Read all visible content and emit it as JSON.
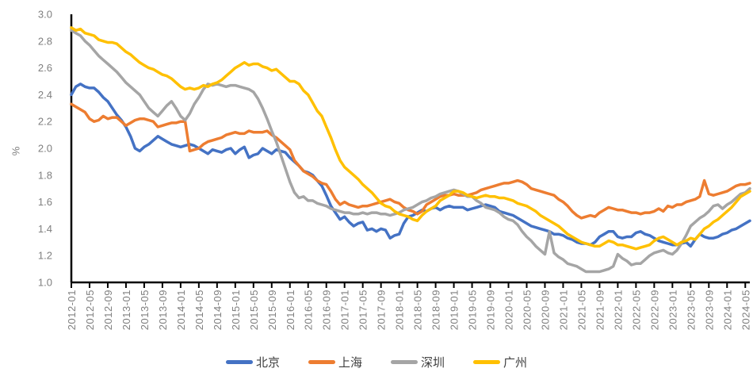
{
  "chart_data": {
    "type": "line",
    "title": "",
    "ylabel": "%",
    "ylim": [
      1.0,
      3.0
    ],
    "ytick_step": 0.2,
    "x_tick_every": 4,
    "grid": false,
    "legend_position": "bottom",
    "axis_color": "#000000",
    "tick_label_color": "#7f7f7f",
    "legend_text_color": "#404040",
    "x": [
      "2012-01",
      "2012-02",
      "2012-03",
      "2012-04",
      "2012-05",
      "2012-06",
      "2012-07",
      "2012-08",
      "2012-09",
      "2012-10",
      "2012-11",
      "2012-12",
      "2013-01",
      "2013-02",
      "2013-03",
      "2013-04",
      "2013-05",
      "2013-06",
      "2013-07",
      "2013-08",
      "2013-09",
      "2013-10",
      "2013-11",
      "2013-12",
      "2014-01",
      "2014-02",
      "2014-03",
      "2014-04",
      "2014-05",
      "2014-06",
      "2014-07",
      "2014-08",
      "2014-09",
      "2014-10",
      "2014-11",
      "2014-12",
      "2015-01",
      "2015-02",
      "2015-03",
      "2015-04",
      "2015-05",
      "2015-06",
      "2015-07",
      "2015-08",
      "2015-09",
      "2015-10",
      "2015-11",
      "2015-12",
      "2016-01",
      "2016-02",
      "2016-03",
      "2016-04",
      "2016-05",
      "2016-06",
      "2016-07",
      "2016-08",
      "2016-09",
      "2016-10",
      "2016-11",
      "2016-12",
      "2017-01",
      "2017-02",
      "2017-03",
      "2017-04",
      "2017-05",
      "2017-06",
      "2017-07",
      "2017-08",
      "2017-09",
      "2017-10",
      "2017-11",
      "2017-12",
      "2018-01",
      "2018-02",
      "2018-03",
      "2018-04",
      "2018-05",
      "2018-06",
      "2018-07",
      "2018-08",
      "2018-09",
      "2018-10",
      "2018-11",
      "2018-12",
      "2019-01",
      "2019-02",
      "2019-03",
      "2019-04",
      "2019-05",
      "2019-06",
      "2019-07",
      "2019-08",
      "2019-09",
      "2019-10",
      "2019-11",
      "2019-12",
      "2020-01",
      "2020-02",
      "2020-03",
      "2020-04",
      "2020-05",
      "2020-06",
      "2020-07",
      "2020-08",
      "2020-09",
      "2020-10",
      "2020-11",
      "2020-12",
      "2021-01",
      "2021-02",
      "2021-03",
      "2021-04",
      "2021-05",
      "2021-06",
      "2021-07",
      "2021-08",
      "2021-09",
      "2021-10",
      "2021-11",
      "2021-12",
      "2022-01",
      "2022-02",
      "2022-03",
      "2022-04",
      "2022-05",
      "2022-06",
      "2022-07",
      "2022-08",
      "2022-09",
      "2022-10",
      "2022-11",
      "2022-12",
      "2023-01",
      "2023-02",
      "2023-03",
      "2023-04",
      "2023-05",
      "2023-06",
      "2023-07",
      "2023-08",
      "2023-09",
      "2023-10",
      "2023-11",
      "2023-12",
      "2024-01",
      "2024-02",
      "2024-03",
      "2024-04",
      "2024-05",
      "2024-06"
    ],
    "series": [
      {
        "name": "北京",
        "key": "beijing",
        "color": "#4472C4",
        "values": [
          2.4,
          2.46,
          2.48,
          2.46,
          2.45,
          2.45,
          2.42,
          2.38,
          2.35,
          2.3,
          2.25,
          2.21,
          2.16,
          2.09,
          2.0,
          1.98,
          2.01,
          2.03,
          2.06,
          2.09,
          2.07,
          2.05,
          2.03,
          2.02,
          2.01,
          2.02,
          2.03,
          2.02,
          2.0,
          1.98,
          1.96,
          1.99,
          1.98,
          1.97,
          1.99,
          2.0,
          1.96,
          1.99,
          2.01,
          1.93,
          1.95,
          1.96,
          2.0,
          1.98,
          1.96,
          1.99,
          1.98,
          1.97,
          1.93,
          1.9,
          1.87,
          1.83,
          1.82,
          1.8,
          1.76,
          1.72,
          1.65,
          1.57,
          1.52,
          1.47,
          1.49,
          1.45,
          1.42,
          1.44,
          1.45,
          1.39,
          1.4,
          1.38,
          1.4,
          1.39,
          1.33,
          1.35,
          1.36,
          1.44,
          1.49,
          1.5,
          1.52,
          1.54,
          1.53,
          1.55,
          1.56,
          1.54,
          1.56,
          1.57,
          1.56,
          1.56,
          1.56,
          1.54,
          1.55,
          1.56,
          1.57,
          1.58,
          1.57,
          1.56,
          1.53,
          1.52,
          1.51,
          1.5,
          1.48,
          1.46,
          1.44,
          1.42,
          1.41,
          1.4,
          1.39,
          1.38,
          1.36,
          1.36,
          1.35,
          1.33,
          1.32,
          1.3,
          1.29,
          1.29,
          1.28,
          1.3,
          1.34,
          1.36,
          1.38,
          1.38,
          1.34,
          1.33,
          1.34,
          1.34,
          1.37,
          1.38,
          1.36,
          1.35,
          1.33,
          1.31,
          1.3,
          1.29,
          1.28,
          1.28,
          1.29,
          1.3,
          1.27,
          1.32,
          1.36,
          1.34,
          1.33,
          1.33,
          1.34,
          1.36,
          1.37,
          1.39,
          1.4,
          1.42,
          1.44,
          1.46
        ]
      },
      {
        "name": "上海",
        "key": "shanghai",
        "color": "#ED7D31",
        "values": [
          2.33,
          2.31,
          2.29,
          2.27,
          2.22,
          2.2,
          2.21,
          2.24,
          2.22,
          2.23,
          2.23,
          2.2,
          2.17,
          2.19,
          2.21,
          2.22,
          2.22,
          2.21,
          2.2,
          2.16,
          2.17,
          2.18,
          2.19,
          2.19,
          2.2,
          2.2,
          1.98,
          1.99,
          2.0,
          2.03,
          2.05,
          2.06,
          2.07,
          2.08,
          2.1,
          2.11,
          2.12,
          2.11,
          2.11,
          2.13,
          2.12,
          2.12,
          2.12,
          2.13,
          2.1,
          2.08,
          2.05,
          2.02,
          1.99,
          1.91,
          1.87,
          1.83,
          1.81,
          1.79,
          1.76,
          1.74,
          1.73,
          1.68,
          1.62,
          1.58,
          1.6,
          1.58,
          1.57,
          1.56,
          1.57,
          1.57,
          1.58,
          1.59,
          1.6,
          1.61,
          1.62,
          1.6,
          1.59,
          1.56,
          1.54,
          1.53,
          1.51,
          1.53,
          1.58,
          1.6,
          1.62,
          1.64,
          1.65,
          1.65,
          1.66,
          1.65,
          1.65,
          1.65,
          1.66,
          1.67,
          1.69,
          1.7,
          1.71,
          1.72,
          1.73,
          1.74,
          1.74,
          1.75,
          1.76,
          1.75,
          1.73,
          1.7,
          1.69,
          1.68,
          1.67,
          1.66,
          1.65,
          1.62,
          1.6,
          1.57,
          1.53,
          1.5,
          1.48,
          1.49,
          1.5,
          1.49,
          1.52,
          1.54,
          1.56,
          1.55,
          1.54,
          1.54,
          1.53,
          1.52,
          1.52,
          1.51,
          1.52,
          1.52,
          1.53,
          1.55,
          1.53,
          1.57,
          1.56,
          1.58,
          1.58,
          1.6,
          1.61,
          1.62,
          1.64,
          1.76,
          1.66,
          1.65,
          1.66,
          1.67,
          1.68,
          1.7,
          1.72,
          1.73,
          1.73,
          1.74
        ]
      },
      {
        "name": "深圳",
        "key": "shenzhen",
        "color": "#A5A5A5",
        "values": [
          2.88,
          2.86,
          2.84,
          2.8,
          2.77,
          2.73,
          2.69,
          2.66,
          2.63,
          2.6,
          2.57,
          2.53,
          2.49,
          2.46,
          2.43,
          2.4,
          2.35,
          2.3,
          2.27,
          2.24,
          2.28,
          2.32,
          2.35,
          2.3,
          2.24,
          2.21,
          2.26,
          2.33,
          2.38,
          2.44,
          2.48,
          2.47,
          2.48,
          2.47,
          2.46,
          2.47,
          2.47,
          2.46,
          2.45,
          2.44,
          2.42,
          2.37,
          2.3,
          2.22,
          2.13,
          2.05,
          1.95,
          1.85,
          1.75,
          1.67,
          1.63,
          1.64,
          1.61,
          1.61,
          1.59,
          1.58,
          1.57,
          1.55,
          1.54,
          1.53,
          1.52,
          1.52,
          1.51,
          1.51,
          1.52,
          1.51,
          1.52,
          1.52,
          1.51,
          1.51,
          1.5,
          1.51,
          1.52,
          1.54,
          1.55,
          1.56,
          1.58,
          1.6,
          1.61,
          1.63,
          1.64,
          1.66,
          1.67,
          1.68,
          1.69,
          1.68,
          1.66,
          1.64,
          1.64,
          1.61,
          1.59,
          1.56,
          1.55,
          1.54,
          1.52,
          1.49,
          1.47,
          1.46,
          1.43,
          1.38,
          1.34,
          1.31,
          1.27,
          1.24,
          1.21,
          1.38,
          1.22,
          1.19,
          1.17,
          1.14,
          1.13,
          1.12,
          1.1,
          1.08,
          1.08,
          1.08,
          1.08,
          1.09,
          1.1,
          1.12,
          1.21,
          1.18,
          1.16,
          1.13,
          1.14,
          1.14,
          1.17,
          1.2,
          1.22,
          1.23,
          1.24,
          1.22,
          1.21,
          1.24,
          1.29,
          1.35,
          1.42,
          1.45,
          1.48,
          1.5,
          1.53,
          1.57,
          1.58,
          1.55,
          1.58,
          1.6,
          1.63,
          1.66,
          1.67,
          1.7
        ]
      },
      {
        "name": "广州",
        "key": "guangzhou",
        "color": "#FFC000",
        "values": [
          2.9,
          2.88,
          2.89,
          2.86,
          2.85,
          2.84,
          2.81,
          2.8,
          2.79,
          2.79,
          2.78,
          2.75,
          2.72,
          2.7,
          2.67,
          2.64,
          2.62,
          2.6,
          2.59,
          2.57,
          2.55,
          2.54,
          2.52,
          2.49,
          2.46,
          2.44,
          2.45,
          2.44,
          2.45,
          2.47,
          2.46,
          2.48,
          2.49,
          2.51,
          2.54,
          2.57,
          2.6,
          2.62,
          2.64,
          2.62,
          2.63,
          2.63,
          2.61,
          2.6,
          2.58,
          2.59,
          2.56,
          2.53,
          2.5,
          2.5,
          2.48,
          2.43,
          2.4,
          2.34,
          2.28,
          2.24,
          2.16,
          2.08,
          1.99,
          1.91,
          1.86,
          1.83,
          1.8,
          1.77,
          1.73,
          1.7,
          1.67,
          1.63,
          1.59,
          1.57,
          1.56,
          1.53,
          1.51,
          1.5,
          1.49,
          1.47,
          1.46,
          1.5,
          1.53,
          1.55,
          1.57,
          1.61,
          1.63,
          1.65,
          1.68,
          1.68,
          1.67,
          1.65,
          1.64,
          1.63,
          1.64,
          1.65,
          1.64,
          1.64,
          1.63,
          1.63,
          1.62,
          1.61,
          1.59,
          1.58,
          1.57,
          1.55,
          1.53,
          1.5,
          1.48,
          1.46,
          1.44,
          1.42,
          1.39,
          1.36,
          1.34,
          1.32,
          1.3,
          1.29,
          1.28,
          1.27,
          1.27,
          1.29,
          1.31,
          1.3,
          1.28,
          1.28,
          1.27,
          1.26,
          1.25,
          1.26,
          1.27,
          1.28,
          1.31,
          1.33,
          1.34,
          1.32,
          1.3,
          1.28,
          1.3,
          1.31,
          1.33,
          1.32,
          1.36,
          1.4,
          1.42,
          1.45,
          1.47,
          1.5,
          1.53,
          1.56,
          1.6,
          1.64,
          1.66,
          1.68
        ]
      }
    ]
  }
}
